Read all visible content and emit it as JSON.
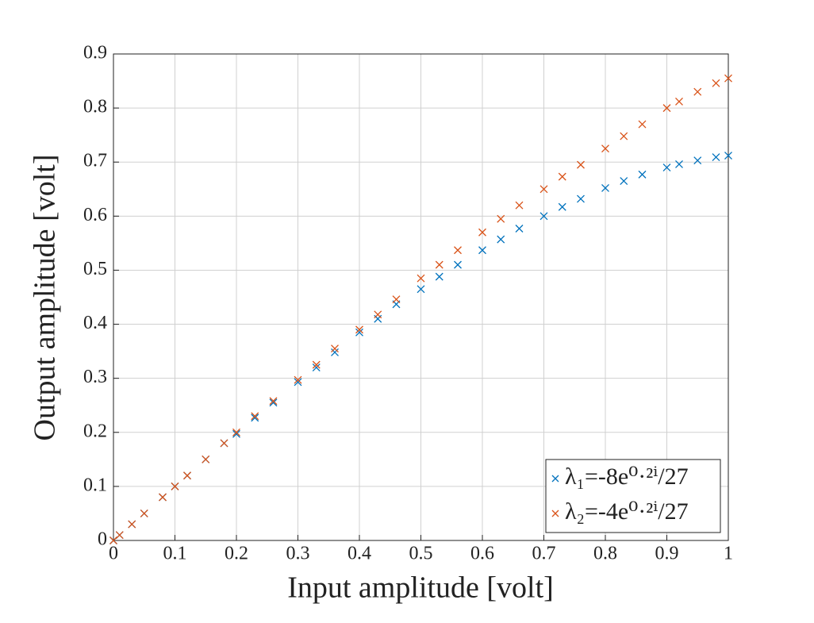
{
  "chart_data": {
    "type": "scatter",
    "x_label": "Input amplitude [volt]",
    "y_label": "Output amplitude [volt]",
    "x": [
      0,
      0.01,
      0.03,
      0.05,
      0.08,
      0.1,
      0.12,
      0.15,
      0.18,
      0.2,
      0.23,
      0.26,
      0.3,
      0.33,
      0.36,
      0.4,
      0.43,
      0.46,
      0.5,
      0.53,
      0.56,
      0.6,
      0.63,
      0.66,
      0.7,
      0.73,
      0.76,
      0.8,
      0.83,
      0.86,
      0.9,
      0.92,
      0.95,
      0.98,
      1.0
    ],
    "series": [
      {
        "name": "λ₁=-8e⁰·²ⁱ/27",
        "color": "#0072bd",
        "values": [
          0,
          0.01,
          0.03,
          0.05,
          0.08,
          0.1,
          0.12,
          0.15,
          0.18,
          0.197,
          0.227,
          0.255,
          0.293,
          0.32,
          0.348,
          0.385,
          0.41,
          0.437,
          0.465,
          0.488,
          0.51,
          0.537,
          0.557,
          0.577,
          0.6,
          0.617,
          0.632,
          0.652,
          0.665,
          0.677,
          0.69,
          0.696,
          0.703,
          0.709,
          0.712
        ]
      },
      {
        "name": "λ₂=-4e⁰·²ⁱ/27",
        "color": "#d95319",
        "values": [
          0,
          0.01,
          0.03,
          0.05,
          0.08,
          0.1,
          0.12,
          0.15,
          0.18,
          0.2,
          0.23,
          0.258,
          0.297,
          0.325,
          0.355,
          0.39,
          0.418,
          0.446,
          0.485,
          0.51,
          0.537,
          0.57,
          0.595,
          0.62,
          0.65,
          0.673,
          0.695,
          0.725,
          0.748,
          0.77,
          0.8,
          0.812,
          0.83,
          0.846,
          0.855
        ]
      }
    ],
    "xlim": [
      0,
      1
    ],
    "ylim": [
      0,
      0.9
    ],
    "xticks": [
      0,
      0.1,
      0.2,
      0.3,
      0.4,
      0.5,
      0.6,
      0.7,
      0.8,
      0.9,
      1
    ],
    "yticks": [
      0,
      0.1,
      0.2,
      0.3,
      0.4,
      0.5,
      0.6,
      0.7,
      0.8,
      0.9
    ],
    "grid": true,
    "legend": "lower right"
  }
}
